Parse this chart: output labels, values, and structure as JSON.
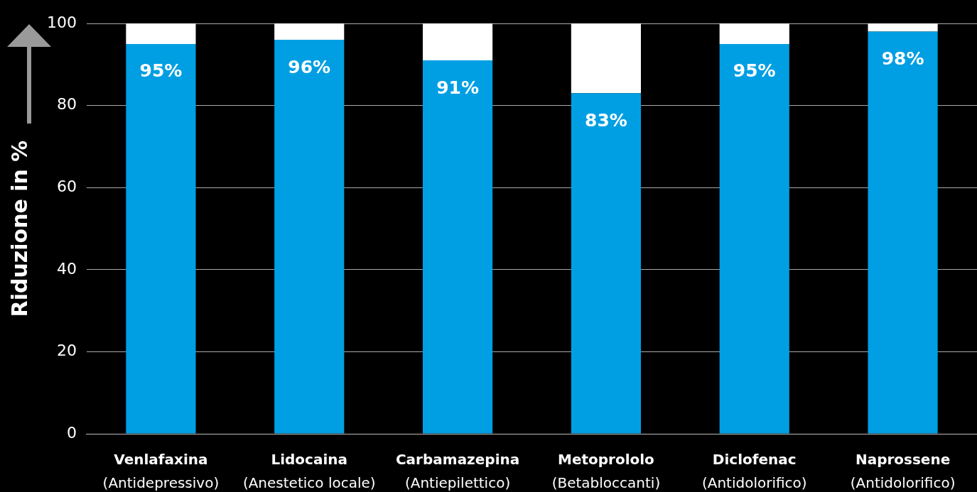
{
  "chart_data": {
    "type": "bar",
    "stacked": true,
    "ylabel": "Riduzione in %",
    "categories": [
      "Venlafaxina\n(Antidepressivo)",
      "Lidocaina\n(Anestetico locale)",
      "Carbamazepina\n(Antiepilettico)",
      "Metoprololo\n(Betabloccanti)",
      "Diclofenac\n(Antidolorifico)",
      "Naprossene\n(Antidolorifico)"
    ],
    "series": [
      {
        "color": "#009fe3",
        "values": [
          95,
          96,
          91,
          83,
          95,
          98
        ],
        "value_labels": [
          "95%",
          "96%",
          "91%",
          "83%",
          "95%",
          "98%"
        ]
      },
      {
        "color": "#ffffff",
        "values": [
          5,
          4,
          9,
          17,
          5,
          2
        ]
      }
    ],
    "ylim": [
      0,
      100
    ],
    "yticks": [
      0,
      20,
      40,
      60,
      80,
      100
    ],
    "grid": "y",
    "legend": false
  }
}
